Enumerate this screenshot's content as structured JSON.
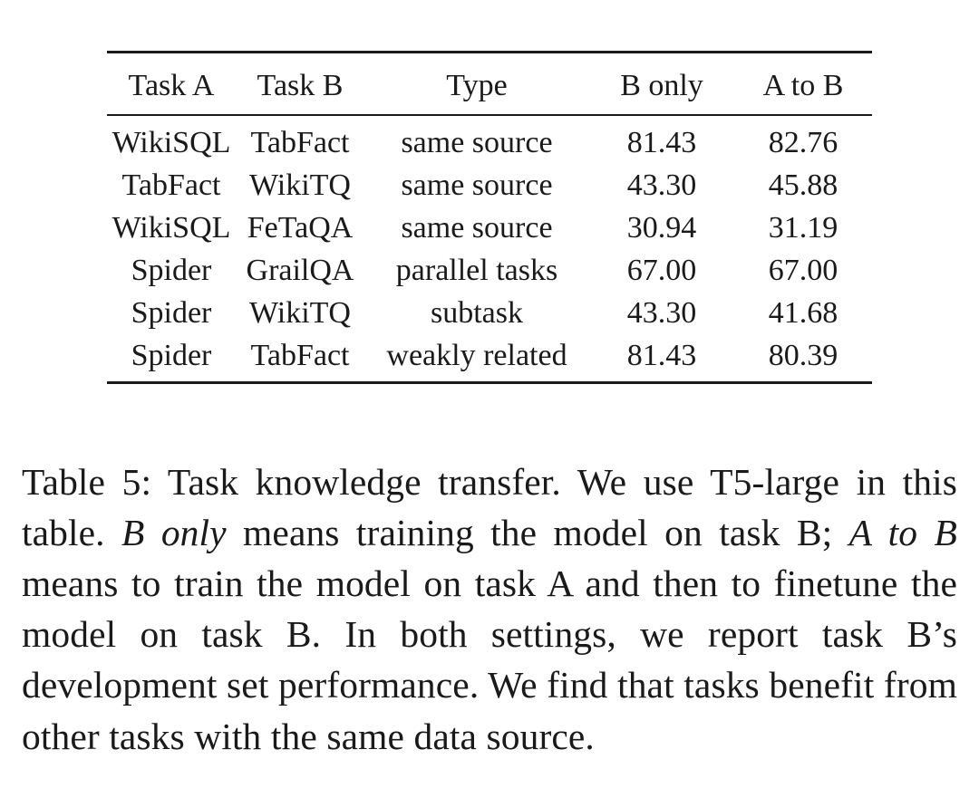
{
  "table": {
    "headers": [
      "Task A",
      "Task B",
      "Type",
      "B only",
      "A to B"
    ],
    "rows": [
      [
        "WikiSQL",
        "TabFact",
        "same source",
        "81.43",
        "82.76"
      ],
      [
        "TabFact",
        "WikiTQ",
        "same source",
        "43.30",
        "45.88"
      ],
      [
        "WikiSQL",
        "FeTaQA",
        "same source",
        "30.94",
        "31.19"
      ],
      [
        "Spider",
        "GrailQA",
        "parallel tasks",
        "67.00",
        "67.00"
      ],
      [
        "Spider",
        "WikiTQ",
        "subtask",
        "43.30",
        "41.68"
      ],
      [
        "Spider",
        "TabFact",
        "weakly related",
        "81.43",
        "80.39"
      ]
    ]
  },
  "caption": {
    "label": "Table 5:",
    "part1": " Task knowledge transfer. We use T5-large in this table. ",
    "italic1": "B only",
    "part2": " means training the model on task B; ",
    "italic2": "A to B",
    "part3": " means to train the model on task A and then to finetune the model on task B. In both settings, we report task B’s development set performance. We find that tasks benefit from other tasks with the same data source."
  }
}
